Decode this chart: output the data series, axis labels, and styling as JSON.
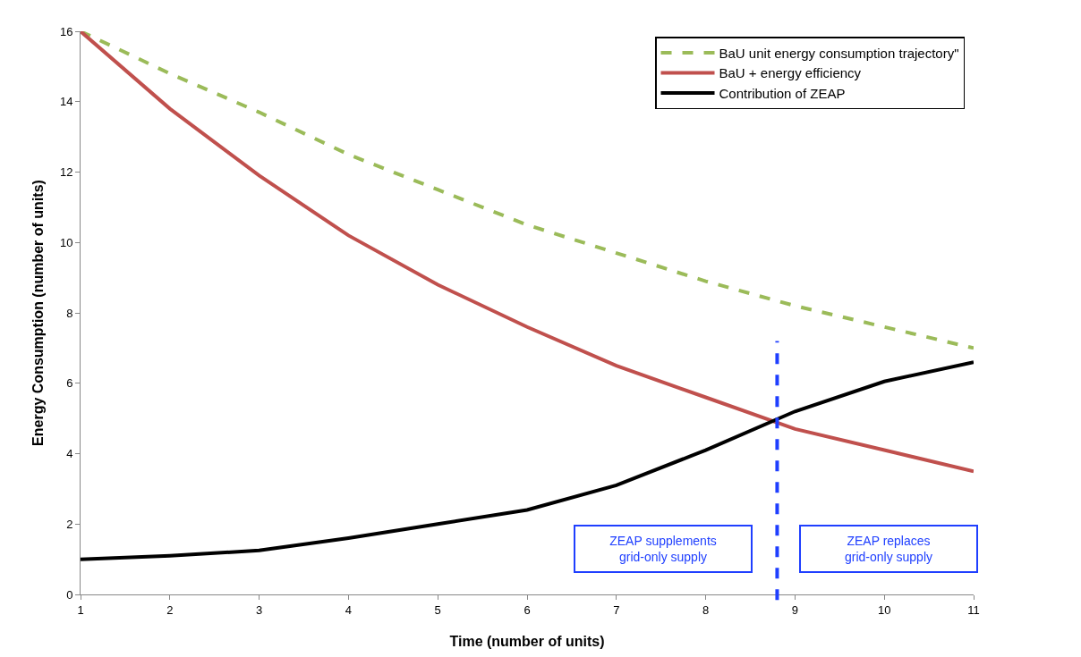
{
  "chart_data": {
    "type": "line",
    "xlabel": "Time (number of units)",
    "ylabel": "Energy Consumption (number of units)",
    "x": [
      1,
      2,
      3,
      4,
      5,
      6,
      7,
      8,
      9,
      10,
      11
    ],
    "series": [
      {
        "name": "BaU unit energy consumption trajectory\"",
        "color": "#9bbb59",
        "line_style": "dashed",
        "values": [
          16,
          14.8,
          13.7,
          12.5,
          11.5,
          10.5,
          9.7,
          8.9,
          8.2,
          7.6,
          7.0
        ]
      },
      {
        "name": "BaU + energy efficiency",
        "color": "#c0504d",
        "values": [
          16,
          13.8,
          11.9,
          10.2,
          8.8,
          7.6,
          6.5,
          5.6,
          4.7,
          4.1,
          3.5
        ]
      },
      {
        "name": "Contribution of ZEAP",
        "color": "#000000",
        "values": [
          1.0,
          1.1,
          1.25,
          1.6,
          2.0,
          2.4,
          3.1,
          4.1,
          5.2,
          6.05,
          6.6
        ]
      }
    ],
    "ref_lines": [
      {
        "axis": "x",
        "value": 8.8,
        "color": "#1f3fff",
        "line_style": "dashed"
      }
    ],
    "annotations": [
      "ZEAP supplements grid-only supply",
      "ZEAP replaces grid-only supply"
    ],
    "xlim": [
      1,
      11
    ],
    "xticks": [
      1,
      2,
      3,
      4,
      5,
      6,
      7,
      8,
      9,
      10,
      11
    ],
    "ylim": [
      0,
      16
    ],
    "yticks": [
      0,
      2,
      4,
      6,
      8,
      10,
      12,
      14,
      16
    ],
    "grid": false,
    "legend": "top right",
    "marker": "none",
    "line_style": "solid"
  }
}
